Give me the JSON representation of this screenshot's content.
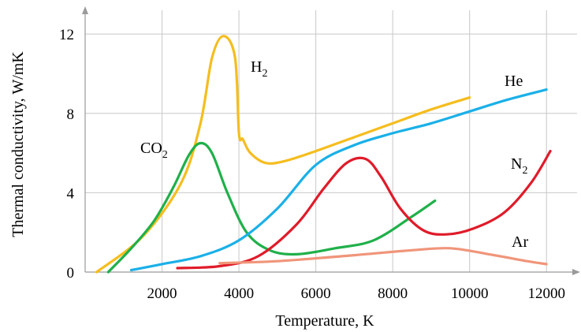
{
  "chart_data": {
    "type": "line",
    "xlabel": "Temperature, K",
    "ylabel": "Thermal conductivity, W/mK",
    "xlim": [
      0,
      13000
    ],
    "ylim": [
      0,
      13.2
    ],
    "x_ticks": [
      2000,
      4000,
      6000,
      8000,
      10000,
      12000
    ],
    "y_ticks": [
      0,
      4,
      8,
      12
    ],
    "grid": true,
    "series": [
      {
        "name": "H",
        "subscript": "2",
        "color": "#f5bd1f",
        "x": [
          300,
          1500,
          2500,
          3000,
          3300,
          3600,
          3900,
          4000,
          4100,
          4300,
          4700,
          5200,
          6000,
          7000,
          8000,
          9000,
          10000
        ],
        "y": [
          0.0,
          1.8,
          4.5,
          7.5,
          10.8,
          11.9,
          10.8,
          7.0,
          6.7,
          6.0,
          5.5,
          5.6,
          6.1,
          6.8,
          7.5,
          8.2,
          8.8
        ]
      },
      {
        "name": "CO",
        "subscript": "2",
        "color": "#1fb04a",
        "x": [
          600,
          1200,
          1800,
          2300,
          2700,
          3000,
          3300,
          3700,
          4200,
          4800,
          5500,
          6500,
          7500,
          8500,
          9100
        ],
        "y": [
          0.0,
          1.2,
          2.6,
          4.3,
          5.9,
          6.5,
          6.0,
          4.0,
          2.0,
          1.1,
          0.9,
          1.2,
          1.6,
          2.8,
          3.6
        ]
      },
      {
        "name": "He",
        "subscript": "",
        "color": "#1ab0e8",
        "x": [
          1200,
          2000,
          3000,
          4000,
          5000,
          6000,
          7000,
          8000,
          9000,
          10000,
          11000,
          12000
        ],
        "y": [
          0.1,
          0.4,
          0.8,
          1.6,
          3.2,
          5.4,
          6.4,
          7.0,
          7.5,
          8.1,
          8.7,
          9.2
        ]
      },
      {
        "name": "N",
        "subscript": "2",
        "color": "#e01b2a",
        "x": [
          2400,
          3500,
          4500,
          5500,
          6200,
          6800,
          7300,
          7700,
          8200,
          8800,
          9400,
          10100,
          10900,
          11600,
          12100
        ],
        "y": [
          0.2,
          0.3,
          0.8,
          2.4,
          4.2,
          5.5,
          5.7,
          4.8,
          3.2,
          2.1,
          1.9,
          2.2,
          3.0,
          4.5,
          6.1
        ]
      },
      {
        "name": "Ar",
        "subscript": "",
        "color": "#f0957a",
        "x": [
          3500,
          5000,
          7000,
          8500,
          9500,
          10500,
          11500,
          12000
        ],
        "y": [
          0.45,
          0.55,
          0.85,
          1.1,
          1.2,
          0.9,
          0.55,
          0.4
        ]
      }
    ]
  }
}
